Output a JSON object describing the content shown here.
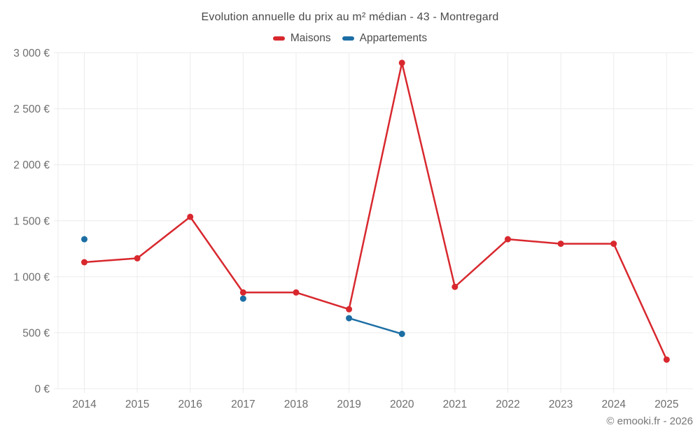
{
  "chart_data": {
    "type": "line",
    "title": "Evolution annuelle du prix au m² médian - 43 - Montregard",
    "categories": [
      "2014",
      "2015",
      "2016",
      "2017",
      "2018",
      "2019",
      "2020",
      "2021",
      "2022",
      "2023",
      "2024",
      "2025"
    ],
    "series": [
      {
        "name": "Maisons",
        "color": "#d8282e",
        "values": [
          1130,
          1165,
          1535,
          860,
          860,
          710,
          2910,
          910,
          1335,
          1295,
          1295,
          260
        ]
      },
      {
        "name": "Appartements",
        "color": "#1c6ea4",
        "values": [
          1335,
          null,
          null,
          805,
          null,
          630,
          490,
          null,
          null,
          null,
          null,
          null
        ]
      }
    ],
    "ylim": [
      0,
      3000
    ],
    "y_ticks": [
      "0 €",
      "500 €",
      "1 000 €",
      "1 500 €",
      "2 000 €",
      "2 500 €",
      "3 000 €"
    ],
    "grid": true,
    "legend_position": "top",
    "colors": {
      "grid": "#ececec",
      "axis_text": "#6e6e6e",
      "title_text": "#4a4a4a"
    }
  },
  "footer": {
    "credit": "© emooki.fr - 2026"
  }
}
